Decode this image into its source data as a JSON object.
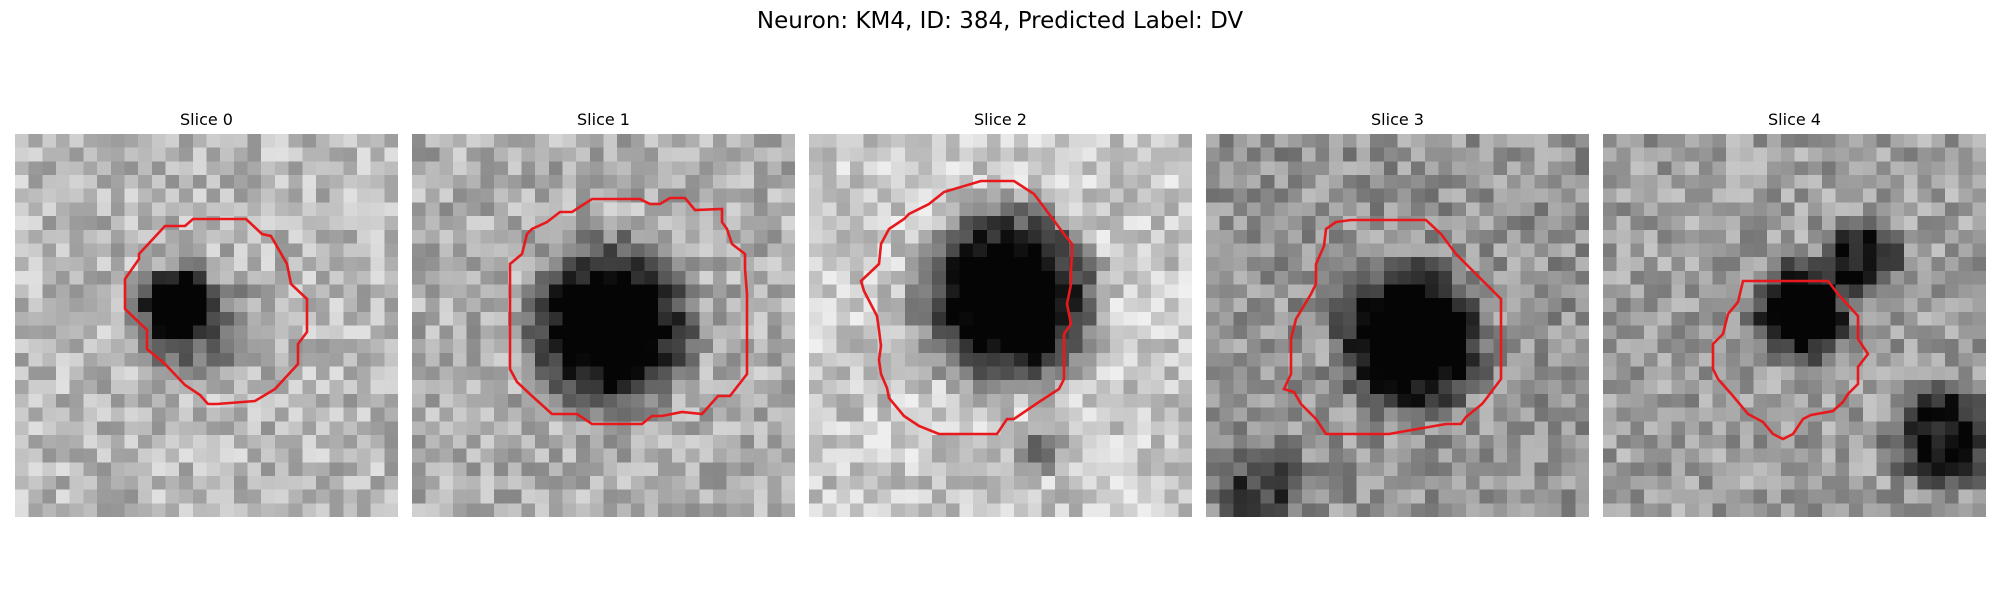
{
  "figure": {
    "title": "Neuron: KM4, ID: 384, Predicted Label: DV"
  },
  "panels": [
    {
      "title": "Slice 0"
    },
    {
      "title": "Slice 1"
    },
    {
      "title": "Slice 2"
    },
    {
      "title": "Slice 3"
    },
    {
      "title": "Slice 4"
    }
  ],
  "colors": {
    "contour": "#e8191c",
    "background": "#ffffff"
  },
  "colormap": "gray",
  "image_grid": "28x28 grayscale microscopy patch per slice"
}
